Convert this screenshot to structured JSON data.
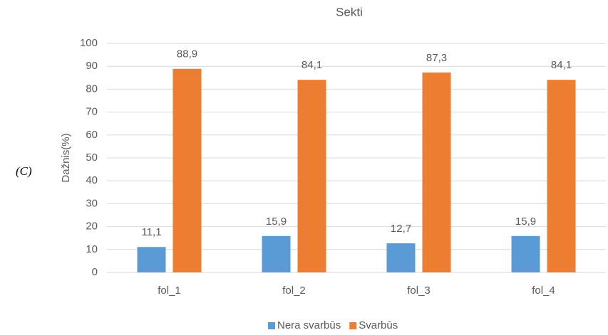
{
  "panel_label": "(C)",
  "chart_data": {
    "type": "bar",
    "title": "Sekti",
    "y_label": "Dažnis(%)",
    "categories": [
      "fol_1",
      "fol_2",
      "fol_3",
      "fol_4"
    ],
    "series": [
      {
        "name": "Nera svarbūs",
        "color": "#5b9bd5",
        "values": [
          11.1,
          15.9,
          12.7,
          15.9
        ],
        "value_labels": [
          "11,1",
          "15,9",
          "12,7",
          "15,9"
        ]
      },
      {
        "name": "Svarbūs",
        "color": "#ed7d31",
        "values": [
          88.9,
          84.1,
          87.3,
          84.1
        ],
        "value_labels": [
          "88,9",
          "84,1",
          "87,3",
          "84,1"
        ]
      }
    ],
    "ylim": [
      0,
      100
    ],
    "yticks": [
      0,
      10,
      20,
      30,
      40,
      50,
      60,
      70,
      80,
      90,
      100
    ],
    "grid": true,
    "legend": "bottom"
  }
}
